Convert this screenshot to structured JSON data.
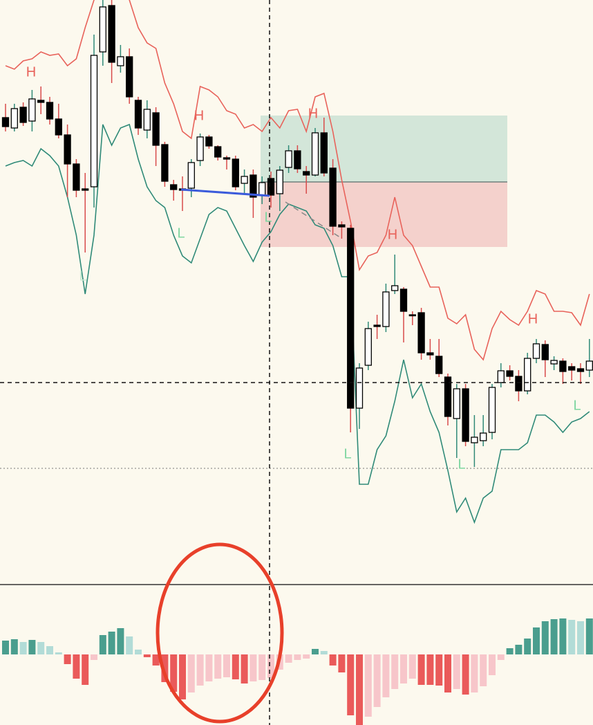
{
  "chart_data": [
    {
      "type": "candlestick",
      "open": [
        830,
        815,
        845,
        825,
        855,
        852,
        828,
        805,
        763,
        727,
        730,
        925,
        992,
        905,
        918,
        855,
        812,
        837,
        791,
        733,
        727,
        728,
        768,
        802,
        788,
        772,
        770,
        735,
        747,
        718,
        742,
        720,
        758,
        782,
        752,
        747,
        808,
        757,
        675,
        670,
        410,
        472,
        530,
        528,
        580,
        582,
        545,
        548,
        490,
        485,
        455,
        395,
        438,
        360,
        363,
        375,
        447,
        464,
        456,
        435,
        482,
        502,
        474,
        478,
        470,
        467,
        465
      ],
      "high": [
        850,
        850,
        852,
        870,
        875,
        860,
        850,
        820,
        770,
        750,
        950,
        1000,
        1000,
        935,
        930,
        860,
        855,
        845,
        795,
        740,
        745,
        770,
        807,
        805,
        790,
        775,
        775,
        755,
        755,
        745,
        752,
        760,
        790,
        790,
        760,
        815,
        830,
        770,
        680,
        675,
        475,
        535,
        545,
        590,
        632,
        585,
        550,
        555,
        510,
        510,
        460,
        445,
        445,
        400,
        400,
        445,
        475,
        472,
        465,
        490,
        510,
        508,
        485,
        482,
        475,
        475,
        510
      ],
      "low": [
        810,
        810,
        818,
        810,
        835,
        820,
        800,
        715,
        715,
        635,
        700,
        905,
        880,
        895,
        850,
        805,
        800,
        760,
        730,
        710,
        695,
        715,
        760,
        785,
        768,
        755,
        725,
        720,
        685,
        705,
        700,
        695,
        750,
        750,
        720,
        745,
        745,
        660,
        655,
        375,
        380,
        465,
        510,
        520,
        575,
        505,
        530,
        480,
        480,
        455,
        385,
        338,
        355,
        325,
        355,
        365,
        440,
        450,
        420,
        430,
        475,
        455,
        465,
        445,
        450,
        445,
        455
      ],
      "close": [
        817,
        843,
        823,
        857,
        852,
        828,
        805,
        763,
        725,
        725,
        920,
        990,
        910,
        918,
        860,
        815,
        842,
        790,
        738,
        726,
        725,
        765,
        802,
        789,
        773,
        770,
        730,
        745,
        715,
        736,
        718,
        754,
        782,
        756,
        747,
        808,
        750,
        673,
        672,
        410,
        468,
        525,
        528,
        578,
        587,
        550,
        544,
        490,
        487,
        460,
        398,
        438,
        362,
        368,
        374,
        440,
        464,
        456,
        435,
        482,
        503,
        480,
        479,
        463,
        465,
        463,
        478
      ],
      "up_color": "#ffffff",
      "down_color": "#000000",
      "series": [
        {
          "color": "#e8625a",
          "values": [
            905,
            900,
            912,
            915,
            925,
            920,
            922,
            905,
            915,
            960,
            1000,
            1040,
            1040,
            1020,
            1000,
            960,
            938,
            930,
            880,
            850,
            810,
            800,
            875,
            870,
            860,
            840,
            835,
            815,
            820,
            810,
            830,
            815,
            840,
            842,
            810,
            860,
            865,
            810,
            740,
            680,
            610,
            630,
            635,
            660,
            715,
            660,
            645,
            615,
            585,
            585,
            540,
            532,
            545,
            495,
            480,
            525,
            550,
            538,
            530,
            550,
            580,
            575,
            550,
            550,
            548,
            530,
            575
          ]
        },
        {
          "color": "#2f8a78",
          "values": [
            760,
            765,
            768,
            760,
            785,
            775,
            760,
            715,
            660,
            575,
            660,
            820,
            790,
            815,
            820,
            770,
            730,
            710,
            700,
            660,
            630,
            620,
            655,
            690,
            700,
            695,
            670,
            645,
            622,
            650,
            665,
            690,
            705,
            700,
            695,
            675,
            670,
            645,
            600,
            600,
            300,
            300,
            350,
            370,
            420,
            480,
            425,
            445,
            405,
            375,
            320,
            260,
            280,
            245,
            280,
            290,
            350,
            350,
            350,
            360,
            400,
            400,
            390,
            375,
            390,
            395,
            405
          ]
        }
      ],
      "annotations": [
        "H",
        "H",
        "H",
        "H",
        "H",
        "L",
        "L",
        "L",
        "L",
        "L",
        "L"
      ],
      "ylim": [
        155,
        1000
      ]
    },
    {
      "type": "bar",
      "values": [
        20,
        22,
        18,
        21,
        18,
        12,
        3,
        -14,
        -35,
        -44,
        -8,
        28,
        33,
        38,
        26,
        7,
        -4,
        -16,
        -40,
        -54,
        -65,
        -55,
        -45,
        -39,
        -35,
        -33,
        -36,
        -42,
        -39,
        -37,
        -34,
        -22,
        -12,
        -8,
        -6,
        8,
        5,
        -16,
        -26,
        -88,
        -102,
        -90,
        -76,
        -62,
        -50,
        -42,
        -35,
        -44,
        -44,
        -45,
        -55,
        -50,
        -58,
        -55,
        -46,
        -30,
        -8,
        9,
        14,
        23,
        39,
        48,
        51,
        52,
        50,
        48,
        52
      ],
      "colors": {
        "rise_up": "#4a9e8e",
        "fall_up": "#b2dcd7",
        "fall_down": "#ea5a5a",
        "rise_down": "#f7c6ca"
      },
      "ylim": [
        -102,
        101
      ]
    }
  ]
}
